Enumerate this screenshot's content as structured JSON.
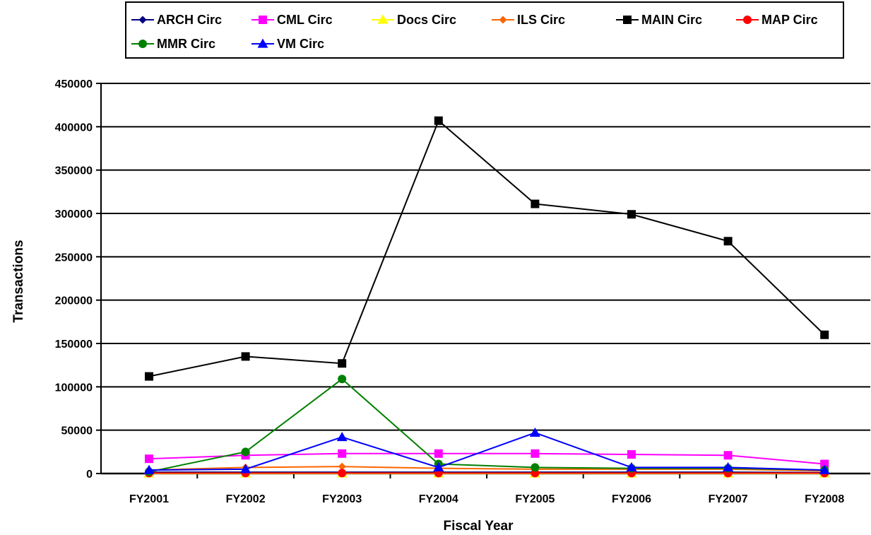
{
  "chart_data": {
    "type": "line",
    "title": "",
    "xlabel": "Fiscal Year",
    "ylabel": "Transactions",
    "categories": [
      "FY2001",
      "FY2002",
      "FY2003",
      "FY2004",
      "FY2005",
      "FY2006",
      "FY2007",
      "FY2008"
    ],
    "ylim": [
      0,
      450000
    ],
    "yticks": [
      0,
      50000,
      100000,
      150000,
      200000,
      250000,
      300000,
      350000,
      400000,
      450000
    ],
    "grid": "horizontal",
    "legend_position": "top",
    "series": [
      {
        "name": "ARCH Circ",
        "color": "#000080",
        "marker": "diamond",
        "values": [
          1500,
          1500,
          1500,
          1500,
          1500,
          1500,
          1500,
          1000
        ]
      },
      {
        "name": "CML Circ",
        "color": "#ff00ff",
        "marker": "square",
        "values": [
          17000,
          21000,
          23000,
          23000,
          23000,
          22000,
          21000,
          11000
        ]
      },
      {
        "name": "Docs Circ",
        "color": "#ffff00",
        "marker": "triangle",
        "values": [
          0,
          0,
          0,
          0,
          0,
          0,
          0,
          0
        ]
      },
      {
        "name": "ILS Circ",
        "color": "#ff6600",
        "marker": "diamond",
        "values": [
          4000,
          7000,
          8000,
          6000,
          5000,
          5000,
          5000,
          3000
        ]
      },
      {
        "name": "MAIN Circ",
        "color": "#000000",
        "marker": "square",
        "values": [
          112000,
          135000,
          127000,
          407000,
          311000,
          299000,
          268000,
          160000
        ]
      },
      {
        "name": "MAP Circ",
        "color": "#ff0000",
        "marker": "circle",
        "values": [
          500,
          500,
          500,
          500,
          500,
          500,
          500,
          500
        ]
      },
      {
        "name": "MMR Circ",
        "color": "#008000",
        "marker": "circle",
        "values": [
          2000,
          25000,
          109000,
          11000,
          7000,
          6000,
          6000,
          4000
        ]
      },
      {
        "name": "VM Circ",
        "color": "#0000ff",
        "marker": "triangle",
        "values": [
          4000,
          5000,
          42000,
          7000,
          47000,
          7000,
          7000,
          4000
        ]
      }
    ]
  }
}
